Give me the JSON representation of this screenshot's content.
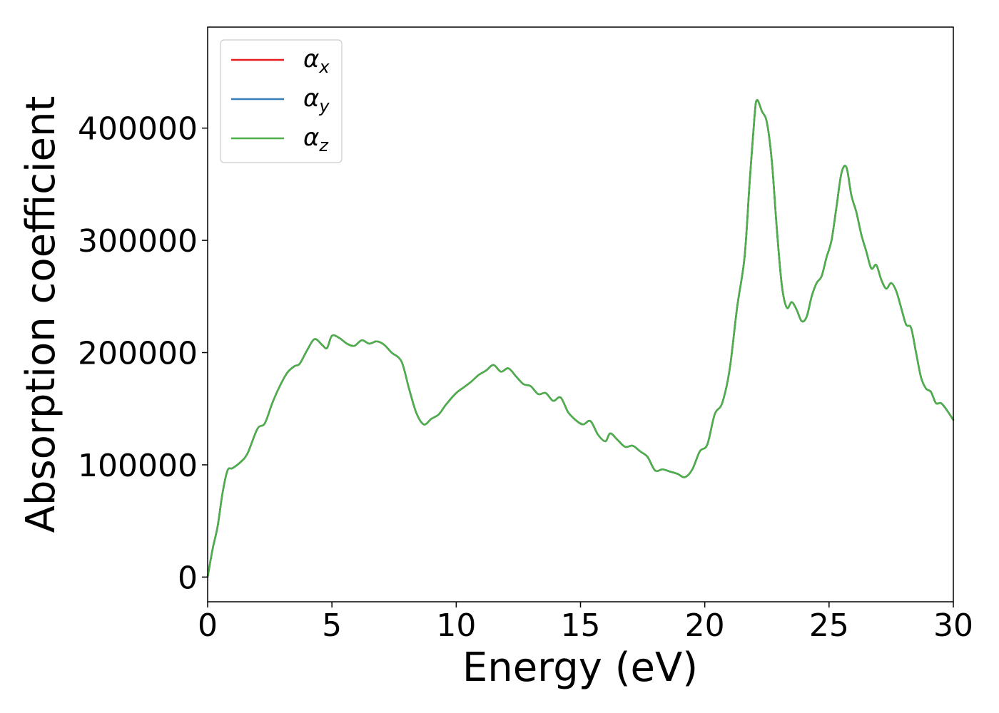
{
  "chart_data": {
    "type": "line",
    "xlabel": "Energy (eV)",
    "ylabel": "Absorption coefficient",
    "xlim": [
      0,
      30
    ],
    "ylim": [
      -22000,
      490000
    ],
    "xticks": [
      0,
      5,
      10,
      15,
      20,
      25,
      30
    ],
    "yticks": [
      0,
      100000,
      200000,
      300000,
      400000
    ],
    "xtick_labels": [
      "0",
      "5",
      "10",
      "15",
      "20",
      "25",
      "30"
    ],
    "ytick_labels": [
      "0",
      "100000",
      "200000",
      "300000",
      "400000"
    ],
    "grid": false,
    "legend_position": "top-left",
    "legend": [
      {
        "base": "α",
        "sub": "x",
        "color": "#e41a1c"
      },
      {
        "base": "α",
        "sub": "y",
        "color": "#377eb8"
      },
      {
        "base": "α",
        "sub": "z",
        "color": "#4daf4a"
      }
    ],
    "series": [
      {
        "name": "α_x",
        "color": "#e41a1c",
        "x": [
          0,
          0.2,
          0.4,
          0.6,
          0.8,
          1.0,
          1.3,
          1.6,
          2.0,
          2.3,
          2.6,
          2.9,
          3.2,
          3.5,
          3.7,
          4.0,
          4.3,
          4.6,
          4.8,
          5.0,
          5.3,
          5.6,
          5.9,
          6.2,
          6.5,
          6.8,
          7.1,
          7.4,
          7.8,
          8.1,
          8.4,
          8.7,
          9.0,
          9.3,
          9.6,
          10.0,
          10.3,
          10.6,
          10.9,
          11.2,
          11.5,
          11.8,
          12.1,
          12.4,
          12.7,
          13.0,
          13.3,
          13.6,
          13.9,
          14.2,
          14.5,
          14.8,
          15.1,
          15.4,
          15.7,
          16.0,
          16.2,
          16.5,
          16.8,
          17.1,
          17.4,
          17.7,
          18.0,
          18.3,
          18.6,
          18.9,
          19.2,
          19.5,
          19.8,
          20.1,
          20.4,
          20.7,
          21.0,
          21.3,
          21.6,
          21.8,
          22.0,
          22.1,
          22.3,
          22.5,
          22.7,
          22.9,
          23.1,
          23.3,
          23.5,
          23.7,
          23.9,
          24.1,
          24.3,
          24.5,
          24.7,
          24.9,
          25.1,
          25.3,
          25.5,
          25.7,
          25.9,
          26.1,
          26.3,
          26.5,
          26.7,
          26.9,
          27.1,
          27.3,
          27.5,
          27.7,
          27.9,
          28.1,
          28.3,
          28.5,
          28.7,
          28.9,
          29.1,
          29.3,
          29.5,
          29.7,
          30.0
        ],
        "y": [
          0,
          25000,
          45000,
          75000,
          95000,
          97000,
          102000,
          110000,
          132000,
          137000,
          155000,
          170000,
          182000,
          188000,
          190000,
          202000,
          212000,
          207000,
          204000,
          215000,
          213000,
          208000,
          206000,
          211000,
          208000,
          210000,
          207000,
          200000,
          192000,
          168000,
          146000,
          136000,
          141000,
          145000,
          154000,
          164000,
          169000,
          174000,
          180000,
          184000,
          189000,
          183000,
          186000,
          179000,
          172000,
          170000,
          163000,
          164000,
          157000,
          160000,
          147000,
          140000,
          136000,
          139000,
          127000,
          121000,
          128000,
          122000,
          116000,
          117000,
          112000,
          107000,
          95000,
          96000,
          94000,
          92000,
          89000,
          96000,
          112000,
          118000,
          145000,
          155000,
          185000,
          240000,
          285000,
          350000,
          410000,
          425000,
          415000,
          405000,
          370000,
          310000,
          260000,
          240000,
          245000,
          238000,
          228000,
          232000,
          250000,
          262000,
          268000,
          285000,
          300000,
          330000,
          360000,
          365000,
          340000,
          325000,
          305000,
          290000,
          275000,
          278000,
          265000,
          257000,
          262000,
          255000,
          240000,
          225000,
          222000,
          200000,
          178000,
          168000,
          165000,
          155000,
          155000,
          150000,
          140000
        ]
      },
      {
        "name": "α_y",
        "color": "#377eb8",
        "x": [
          0,
          0.2,
          0.4,
          0.6,
          0.8,
          1.0,
          1.3,
          1.6,
          2.0,
          2.3,
          2.6,
          2.9,
          3.2,
          3.5,
          3.7,
          4.0,
          4.3,
          4.6,
          4.8,
          5.0,
          5.3,
          5.6,
          5.9,
          6.2,
          6.5,
          6.8,
          7.1,
          7.4,
          7.8,
          8.1,
          8.4,
          8.7,
          9.0,
          9.3,
          9.6,
          10.0,
          10.3,
          10.6,
          10.9,
          11.2,
          11.5,
          11.8,
          12.1,
          12.4,
          12.7,
          13.0,
          13.3,
          13.6,
          13.9,
          14.2,
          14.5,
          14.8,
          15.1,
          15.4,
          15.7,
          16.0,
          16.2,
          16.5,
          16.8,
          17.1,
          17.4,
          17.7,
          18.0,
          18.3,
          18.6,
          18.9,
          19.2,
          19.5,
          19.8,
          20.1,
          20.4,
          20.7,
          21.0,
          21.3,
          21.6,
          21.8,
          22.0,
          22.1,
          22.3,
          22.5,
          22.7,
          22.9,
          23.1,
          23.3,
          23.5,
          23.7,
          23.9,
          24.1,
          24.3,
          24.5,
          24.7,
          24.9,
          25.1,
          25.3,
          25.5,
          25.7,
          25.9,
          26.1,
          26.3,
          26.5,
          26.7,
          26.9,
          27.1,
          27.3,
          27.5,
          27.7,
          27.9,
          28.1,
          28.3,
          28.5,
          28.7,
          28.9,
          29.1,
          29.3,
          29.5,
          29.7,
          30.0
        ],
        "y": [
          0,
          25000,
          45000,
          75000,
          95000,
          97000,
          102000,
          110000,
          132000,
          137000,
          155000,
          170000,
          182000,
          188000,
          190000,
          202000,
          212000,
          207000,
          204000,
          215000,
          213000,
          208000,
          206000,
          211000,
          208000,
          210000,
          207000,
          200000,
          192000,
          168000,
          146000,
          136000,
          141000,
          145000,
          154000,
          164000,
          169000,
          174000,
          180000,
          184000,
          189000,
          183000,
          186000,
          179000,
          172000,
          170000,
          163000,
          164000,
          157000,
          160000,
          147000,
          140000,
          136000,
          139000,
          127000,
          121000,
          128000,
          122000,
          116000,
          117000,
          112000,
          107000,
          95000,
          96000,
          94000,
          92000,
          89000,
          96000,
          112000,
          118000,
          145000,
          155000,
          185000,
          240000,
          285000,
          350000,
          410000,
          425000,
          415000,
          405000,
          370000,
          310000,
          260000,
          240000,
          245000,
          238000,
          228000,
          232000,
          250000,
          262000,
          268000,
          285000,
          300000,
          330000,
          360000,
          365000,
          340000,
          325000,
          305000,
          290000,
          275000,
          278000,
          265000,
          257000,
          262000,
          255000,
          240000,
          225000,
          222000,
          200000,
          178000,
          168000,
          165000,
          155000,
          155000,
          150000,
          140000
        ]
      },
      {
        "name": "α_z",
        "color": "#4daf4a",
        "x": [
          0,
          0.2,
          0.4,
          0.6,
          0.8,
          1.0,
          1.3,
          1.6,
          2.0,
          2.3,
          2.6,
          2.9,
          3.2,
          3.5,
          3.7,
          4.0,
          4.3,
          4.6,
          4.8,
          5.0,
          5.3,
          5.6,
          5.9,
          6.2,
          6.5,
          6.8,
          7.1,
          7.4,
          7.8,
          8.1,
          8.4,
          8.7,
          9.0,
          9.3,
          9.6,
          10.0,
          10.3,
          10.6,
          10.9,
          11.2,
          11.5,
          11.8,
          12.1,
          12.4,
          12.7,
          13.0,
          13.3,
          13.6,
          13.9,
          14.2,
          14.5,
          14.8,
          15.1,
          15.4,
          15.7,
          16.0,
          16.2,
          16.5,
          16.8,
          17.1,
          17.4,
          17.7,
          18.0,
          18.3,
          18.6,
          18.9,
          19.2,
          19.5,
          19.8,
          20.1,
          20.4,
          20.7,
          21.0,
          21.3,
          21.6,
          21.8,
          22.0,
          22.1,
          22.3,
          22.5,
          22.7,
          22.9,
          23.1,
          23.3,
          23.5,
          23.7,
          23.9,
          24.1,
          24.3,
          24.5,
          24.7,
          24.9,
          25.1,
          25.3,
          25.5,
          25.7,
          25.9,
          26.1,
          26.3,
          26.5,
          26.7,
          26.9,
          27.1,
          27.3,
          27.5,
          27.7,
          27.9,
          28.1,
          28.3,
          28.5,
          28.7,
          28.9,
          29.1,
          29.3,
          29.5,
          29.7,
          30.0
        ],
        "y": [
          0,
          25000,
          45000,
          75000,
          95000,
          97000,
          102000,
          110000,
          132000,
          137000,
          155000,
          170000,
          182000,
          188000,
          190000,
          202000,
          212000,
          207000,
          204000,
          215000,
          213000,
          208000,
          206000,
          211000,
          208000,
          210000,
          207000,
          200000,
          192000,
          168000,
          146000,
          136000,
          141000,
          145000,
          154000,
          164000,
          169000,
          174000,
          180000,
          184000,
          189000,
          183000,
          186000,
          179000,
          172000,
          170000,
          163000,
          164000,
          157000,
          160000,
          147000,
          140000,
          136000,
          139000,
          127000,
          121000,
          128000,
          122000,
          116000,
          117000,
          112000,
          107000,
          95000,
          96000,
          94000,
          92000,
          89000,
          96000,
          112000,
          118000,
          145000,
          155000,
          185000,
          240000,
          285000,
          350000,
          410000,
          425000,
          415000,
          405000,
          370000,
          310000,
          260000,
          240000,
          245000,
          238000,
          228000,
          232000,
          250000,
          262000,
          268000,
          285000,
          300000,
          330000,
          360000,
          365000,
          340000,
          325000,
          305000,
          290000,
          275000,
          278000,
          265000,
          257000,
          262000,
          255000,
          240000,
          225000,
          222000,
          200000,
          178000,
          168000,
          165000,
          155000,
          155000,
          150000,
          140000
        ]
      }
    ]
  }
}
